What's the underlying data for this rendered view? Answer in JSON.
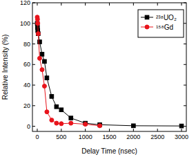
{
  "chart_data": {
    "type": "line",
    "x_label": "Delay Time (nsec)",
    "y_label": "Relative Intensity (%)",
    "xlim": [
      -100,
      3100
    ],
    "xticks": [
      0,
      500,
      1000,
      1500,
      2000,
      2500,
      3000
    ],
    "ylim": [
      -5,
      120
    ],
    "yticks": [
      0,
      20,
      40,
      60,
      80,
      100,
      120
    ],
    "grid": false,
    "legend": "upper right",
    "series": [
      {
        "name": "²³⁸UO₂",
        "color": "#000000",
        "marker": "square",
        "line_style": "solid",
        "x": [
          0,
          5,
          10,
          20,
          50,
          100,
          150,
          200,
          300,
          400,
          500,
          700,
          1000,
          1300,
          2000,
          3000
        ],
        "values": [
          100,
          96,
          93,
          90,
          82,
          70,
          63,
          47,
          29,
          19,
          16,
          8,
          3,
          1.5,
          0.5,
          0.3
        ]
      },
      {
        "name": "¹⁵⁸Gd",
        "color": "#e8141c",
        "marker": "circle",
        "line_style": "solid",
        "x": [
          0,
          5,
          10,
          20,
          50,
          100,
          150,
          200,
          300,
          400,
          500,
          700,
          1000,
          1300
        ],
        "values": [
          106,
          104,
          100,
          90,
          66,
          55,
          39,
          14,
          6,
          3,
          2.5,
          3,
          2,
          0.5
        ]
      }
    ]
  }
}
